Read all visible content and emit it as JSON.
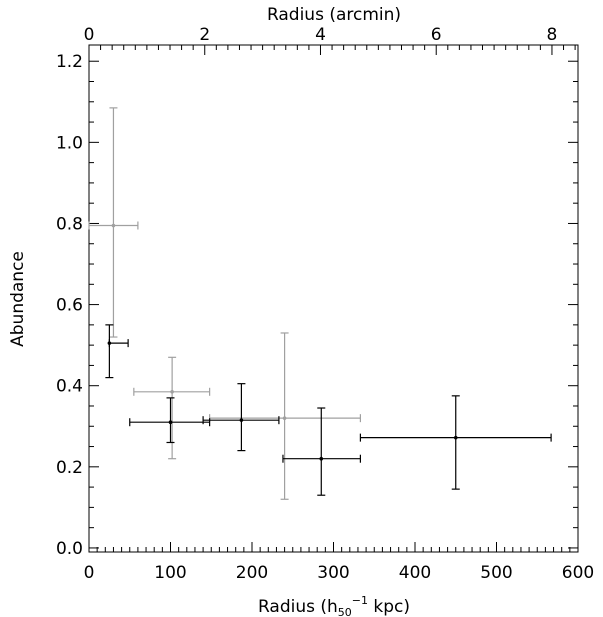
{
  "chart_data": {
    "type": "scatter",
    "title": "",
    "xlabel": "Radius (h",
    "xlabel_sub": "50",
    "xlabel_sup": "−1",
    "xlabel_suffix": " kpc)",
    "ylabel": "Abundance",
    "x2label": "Radius (arcmin)",
    "xlim": [
      0,
      600
    ],
    "ylim": [
      -0.01,
      1.24
    ],
    "x2lim": [
      0,
      8.45
    ],
    "x_ticks": [
      0,
      100,
      200,
      300,
      400,
      500,
      600
    ],
    "x_tick_labels": [
      "0",
      "100",
      "200",
      "300",
      "400",
      "500",
      "600"
    ],
    "y_ticks": [
      0.0,
      0.2,
      0.4,
      0.6,
      0.8,
      1.0,
      1.2
    ],
    "y_tick_labels": [
      "0.0",
      "0.2",
      "0.4",
      "0.6",
      "0.8",
      "1.0",
      "1.2"
    ],
    "x2_ticks": [
      0,
      2,
      4,
      6,
      8
    ],
    "x2_tick_labels": [
      "0",
      "2",
      "4",
      "6",
      "8"
    ],
    "grid": false,
    "series": [
      {
        "color": "#000000",
        "points": [
          {
            "x": 25,
            "xerr": [
              25,
              48
            ],
            "y": 0.505,
            "yerr": [
              0.42,
              0.55
            ]
          },
          {
            "x": 100,
            "xerr": [
              50,
              148
            ],
            "y": 0.31,
            "yerr": [
              0.26,
              0.37
            ]
          },
          {
            "x": 187,
            "xerr": [
              140,
              233
            ],
            "y": 0.315,
            "yerr": [
              0.24,
              0.405
            ]
          },
          {
            "x": 285,
            "xerr": [
              238,
              333
            ],
            "y": 0.22,
            "yerr": [
              0.13,
              0.345
            ]
          },
          {
            "x": 450,
            "xerr": [
              333,
              567
            ],
            "y": 0.272,
            "yerr": [
              0.145,
              0.375
            ]
          }
        ]
      },
      {
        "color": "#a0a0a0",
        "points": [
          {
            "x": 30,
            "xerr": [
              0,
              60
            ],
            "y": 0.795,
            "yerr": [
              0.52,
              1.085
            ]
          },
          {
            "x": 102,
            "xerr": [
              55,
              148
            ],
            "y": 0.385,
            "yerr": [
              0.22,
              0.47
            ]
          },
          {
            "x": 240,
            "xerr": [
              148,
              333
            ],
            "y": 0.32,
            "yerr": [
              0.12,
              0.53
            ]
          }
        ]
      }
    ]
  }
}
